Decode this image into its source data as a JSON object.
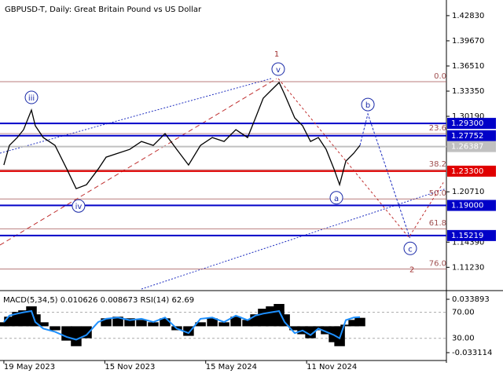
{
  "chart_data": [
    {
      "type": "line",
      "title": "GBPUSD-T, Daily:  Great Britain Pound vs US Dollar",
      "color": "#000000",
      "x": [
        0.0,
        0.33,
        0.8,
        1.17,
        1.64,
        1.87,
        2.34,
        3.04,
        3.74,
        4.3,
        4.91,
        5.61,
        6.08,
        6.78,
        7.48,
        8.18,
        8.88,
        9.58,
        10.28,
        10.98,
        11.69,
        12.39,
        13.09,
        13.79,
        14.49,
        14.96,
        15.42,
        15.89,
        16.36,
        16.69,
        17.29,
        17.76,
        18.23,
        18.7,
        19.16,
        19.63,
        19.96,
        20.33,
        20.8,
        21.17
      ],
      "values": [
        1.2407,
        1.2654,
        1.2752,
        1.2851,
        1.3098,
        1.29,
        1.2752,
        1.2654,
        1.2357,
        1.211,
        1.216,
        1.2357,
        1.2506,
        1.2555,
        1.2604,
        1.2703,
        1.2654,
        1.2802,
        1.2604,
        1.2407,
        1.2654,
        1.2752,
        1.2703,
        1.2851,
        1.2752,
        1.2999,
        1.3246,
        1.3345,
        1.3444,
        1.3296,
        1.2999,
        1.29,
        1.2703,
        1.2752,
        1.2604,
        1.2357,
        1.216,
        1.2456,
        1.2555,
        1.2654
      ],
      "xlim": [
        -0.23,
        26.31
      ],
      "ylim": [
        1.085,
        1.443
      ],
      "xticks": [
        {
          "value": 0,
          "label": "19 May 2023"
        },
        {
          "value": 6,
          "label": "15 Nov 2023"
        },
        {
          "value": 12,
          "label": "15 May 2024"
        },
        {
          "value": 18,
          "label": "11 Nov 2024"
        }
      ],
      "yticks": [
        {
          "value": 1.4283,
          "label": "1.42830"
        },
        {
          "value": 1.3967,
          "label": "1.39670"
        },
        {
          "value": 1.3651,
          "label": "1.36510"
        },
        {
          "value": 1.3335,
          "label": "1.33350"
        },
        {
          "value": 1.3019,
          "label": "1.30190"
        },
        {
          "value": 1.2071,
          "label": "1.20710"
        },
        {
          "value": 1.1439,
          "label": "1.14390"
        },
        {
          "value": 1.1123,
          "label": "1.11230"
        }
      ],
      "levels": [
        {
          "value": 1.293,
          "label": "1.29300",
          "color": "#0000c8"
        },
        {
          "value": 1.27752,
          "label": "1.27752",
          "color": "#0000c8"
        },
        {
          "value": 1.26387,
          "label": "1.26387",
          "color": "#c0c0c0"
        },
        {
          "value": 1.233,
          "label": "1.23300",
          "color": "#e00000"
        },
        {
          "value": 1.19,
          "label": "1.19000",
          "color": "#0000c8"
        },
        {
          "value": 1.15219,
          "label": "1.15219",
          "color": "#0000c8"
        }
      ],
      "fib_levels": [
        {
          "label": "0.0",
          "value": 1.3454
        },
        {
          "label": "23.6",
          "value": 1.2802
        },
        {
          "label": "38.2",
          "value": 1.2348
        },
        {
          "label": "50.0",
          "value": 1.1982
        },
        {
          "label": "61.8",
          "value": 1.1607
        },
        {
          "label": "76.0",
          "value": 1.1103
        }
      ],
      "fib_color": "#a05050",
      "annotations": [
        {
          "text": "iii",
          "x": 1.64,
          "y": 1.3256,
          "circled": true,
          "color": "#1a2aa8"
        },
        {
          "text": "iv",
          "x": 4.44,
          "y": 1.1893,
          "circled": true,
          "color": "#1a2aa8"
        },
        {
          "text": "v",
          "x": 16.31,
          "y": 1.3611,
          "circled": true,
          "color": "#1a2aa8"
        },
        {
          "text": "a",
          "x": 19.77,
          "y": 1.1996,
          "circled": true,
          "color": "#1a2aa8"
        },
        {
          "text": "b",
          "x": 21.64,
          "y": 1.3167,
          "circled": true,
          "color": "#1a2aa8"
        },
        {
          "text": "c",
          "x": 24.16,
          "y": 1.136,
          "circled": true,
          "color": "#1a2aa8"
        },
        {
          "text": "1",
          "x": 16.22,
          "y": 1.3809,
          "circled": false,
          "color": "#a03030"
        },
        {
          "text": "2",
          "x": 24.26,
          "y": 1.1103,
          "circled": false,
          "color": "#a03030"
        }
      ]
    },
    {
      "type": "macd",
      "title": "MACD(5,34,5) 0.010626 0.008673 RSI(14) 62.69",
      "x": [
        0.0,
        0.33,
        0.8,
        1.17,
        1.64,
        1.87,
        2.34,
        3.04,
        3.74,
        4.3,
        4.91,
        5.61,
        6.08,
        6.78,
        7.48,
        8.18,
        8.88,
        9.58,
        10.28,
        10.98,
        11.69,
        12.39,
        13.09,
        13.79,
        14.49,
        14.96,
        15.42,
        15.89,
        16.36,
        16.69,
        17.29,
        17.76,
        18.23,
        18.7,
        19.16,
        19.63,
        19.96,
        20.33,
        20.8,
        21.17
      ],
      "ylim": [
        -0.042,
        0.0428
      ],
      "yticks": [
        0.033893,
        -0.033114
      ],
      "y2lim": [
        -3,
        101
      ],
      "y2ticks": [
        {
          "value": 70,
          "label": "70.00"
        },
        {
          "value": 30,
          "label": "30.00"
        }
      ],
      "series": [
        {
          "type": "bar",
          "color": "#000000",
          "values": [
            0.005,
            0.012,
            0.018,
            0.02,
            0.025,
            0.015,
            0.005,
            -0.005,
            -0.018,
            -0.025,
            -0.015,
            0,
            0.01,
            0.012,
            0.01,
            0.008,
            0.005,
            0.01,
            -0.005,
            -0.012,
            0.005,
            0.01,
            0.005,
            0.012,
            0.008,
            0.015,
            0.022,
            0.025,
            0.028,
            0.015,
            -0.005,
            -0.01,
            -0.015,
            -0.005,
            -0.01,
            -0.02,
            -0.025,
            0.002,
            0.008,
            0.0106
          ]
        },
        {
          "type": "line",
          "axis": "y2",
          "color": "#1e90ff",
          "values": [
            55,
            65,
            68,
            70,
            72,
            55,
            45,
            40,
            32,
            28,
            35,
            55,
            60,
            62,
            58,
            60,
            55,
            62,
            45,
            38,
            60,
            62,
            55,
            65,
            58,
            65,
            68,
            70,
            72,
            55,
            38,
            42,
            35,
            45,
            40,
            35,
            30,
            58,
            62,
            62.69
          ]
        }
      ]
    }
  ]
}
